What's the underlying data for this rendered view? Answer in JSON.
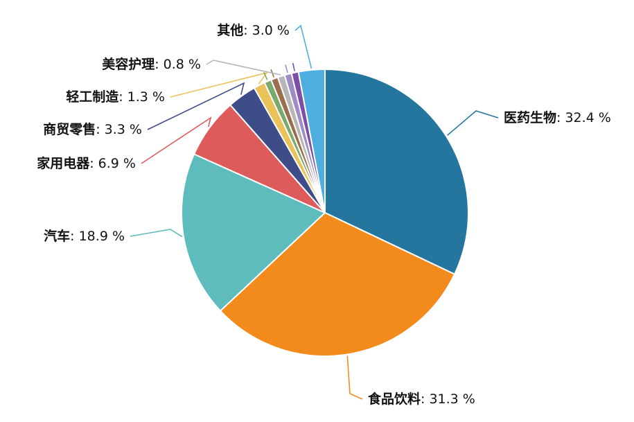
{
  "chart_data": {
    "type": "pie",
    "slices": [
      {
        "name": "医药生物",
        "value": 32.4,
        "value_text": "32.4 %",
        "color": "#24769e"
      },
      {
        "name": "食品饮料",
        "value": 31.3,
        "value_text": "31.3 %",
        "color": "#f28b1c"
      },
      {
        "name": "汽车",
        "value": 18.9,
        "value_text": "18.9 %",
        "color": "#5fbcbd"
      },
      {
        "name": "家用电器",
        "value": 6.9,
        "value_text": "6.9 %",
        "color": "#de5b5b"
      },
      {
        "name": "商贸零售",
        "value": 3.3,
        "value_text": "3.3 %",
        "color": "#3e4d87"
      },
      {
        "name": "轻工制造",
        "value": 1.3,
        "value_text": "1.3 %",
        "color": "#e9c25a"
      },
      {
        "name": "",
        "value": 0.8,
        "value_text": "",
        "color": "#79a96b"
      },
      {
        "name": "",
        "value": 0.8,
        "value_text": "",
        "color": "#9b6f4d"
      },
      {
        "name": "美容护理",
        "value": 0.8,
        "value_text": "0.8 %",
        "color": "#b6b6b6"
      },
      {
        "name": "",
        "value": 0.8,
        "value_text": "",
        "color": "#9f8bc6"
      },
      {
        "name": "",
        "value": 0.8,
        "value_text": "",
        "color": "#7b4fa8"
      },
      {
        "name": "其他",
        "value": 3.0,
        "value_text": "3.0 %",
        "color": "#4eaee0"
      }
    ],
    "title": "",
    "legend": "none",
    "start": "12 o'clock",
    "direction": "clockwise"
  }
}
